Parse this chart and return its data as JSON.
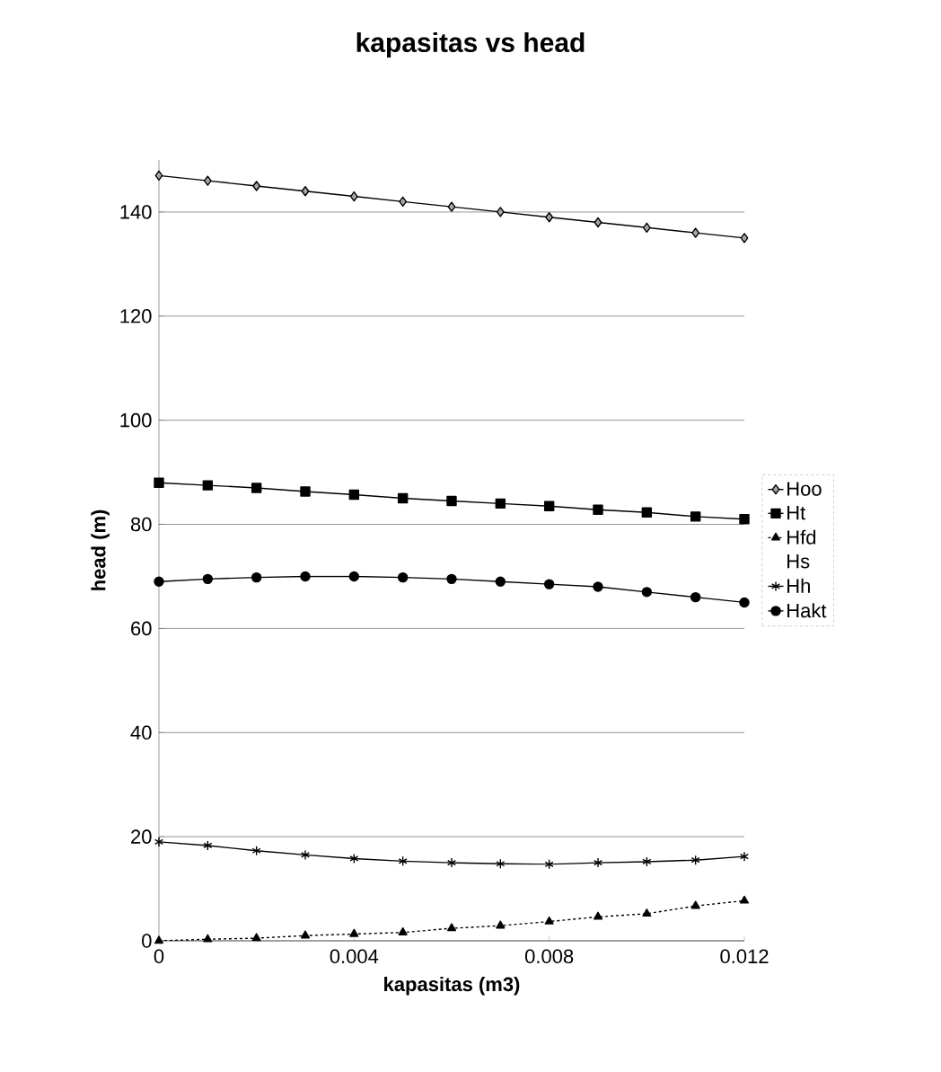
{
  "chart_data": {
    "type": "line",
    "title": "kapasitas vs head",
    "xlabel": "kapasitas (m3)",
    "ylabel": "head (m)",
    "x": [
      0,
      0.001,
      0.002,
      0.003,
      0.004,
      0.005,
      0.006,
      0.007,
      0.008,
      0.009,
      0.01,
      0.011,
      0.012
    ],
    "series": [
      {
        "name": "Hoo",
        "color": "#000000",
        "marker": "diamond",
        "values": [
          147,
          146,
          145,
          144,
          143,
          142,
          141,
          140,
          139,
          138,
          137,
          136,
          135
        ]
      },
      {
        "name": "Ht",
        "color": "#000000",
        "marker": "square",
        "values": [
          88,
          87.5,
          87,
          86.3,
          85.7,
          85,
          84.5,
          84,
          83.5,
          82.8,
          82.3,
          81.5,
          81
        ]
      },
      {
        "name": "Hfd",
        "color": "#000000",
        "marker": "triangle",
        "line_style": "dashed",
        "values": [
          0,
          0.3,
          0.5,
          1.0,
          1.3,
          1.6,
          2.4,
          2.9,
          3.7,
          4.6,
          5.2,
          6.7,
          7.7
        ]
      },
      {
        "name": "Hs",
        "marker": "none",
        "values": [
          null,
          null,
          null,
          null,
          null,
          null,
          null,
          null,
          null,
          null,
          null,
          null,
          null
        ]
      },
      {
        "name": "Hh",
        "color": "#000000",
        "marker": "cross",
        "values": [
          19,
          18.3,
          17.3,
          16.5,
          15.8,
          15.3,
          15,
          14.8,
          14.7,
          15,
          15.2,
          15.5,
          16.2
        ]
      },
      {
        "name": "Hakt",
        "color": "#000000",
        "marker": "circle",
        "values": [
          69,
          69.5,
          69.8,
          70,
          70,
          69.8,
          69.5,
          69,
          68.5,
          68,
          67,
          66,
          65
        ]
      }
    ],
    "xlim": [
      0,
      0.012
    ],
    "xticks": [
      0,
      0.004,
      0.008,
      0.012
    ],
    "ylim": [
      0,
      150
    ],
    "yticks": [
      0,
      20,
      40,
      60,
      80,
      100,
      120,
      140
    ],
    "grid": "y",
    "legend": "right"
  }
}
